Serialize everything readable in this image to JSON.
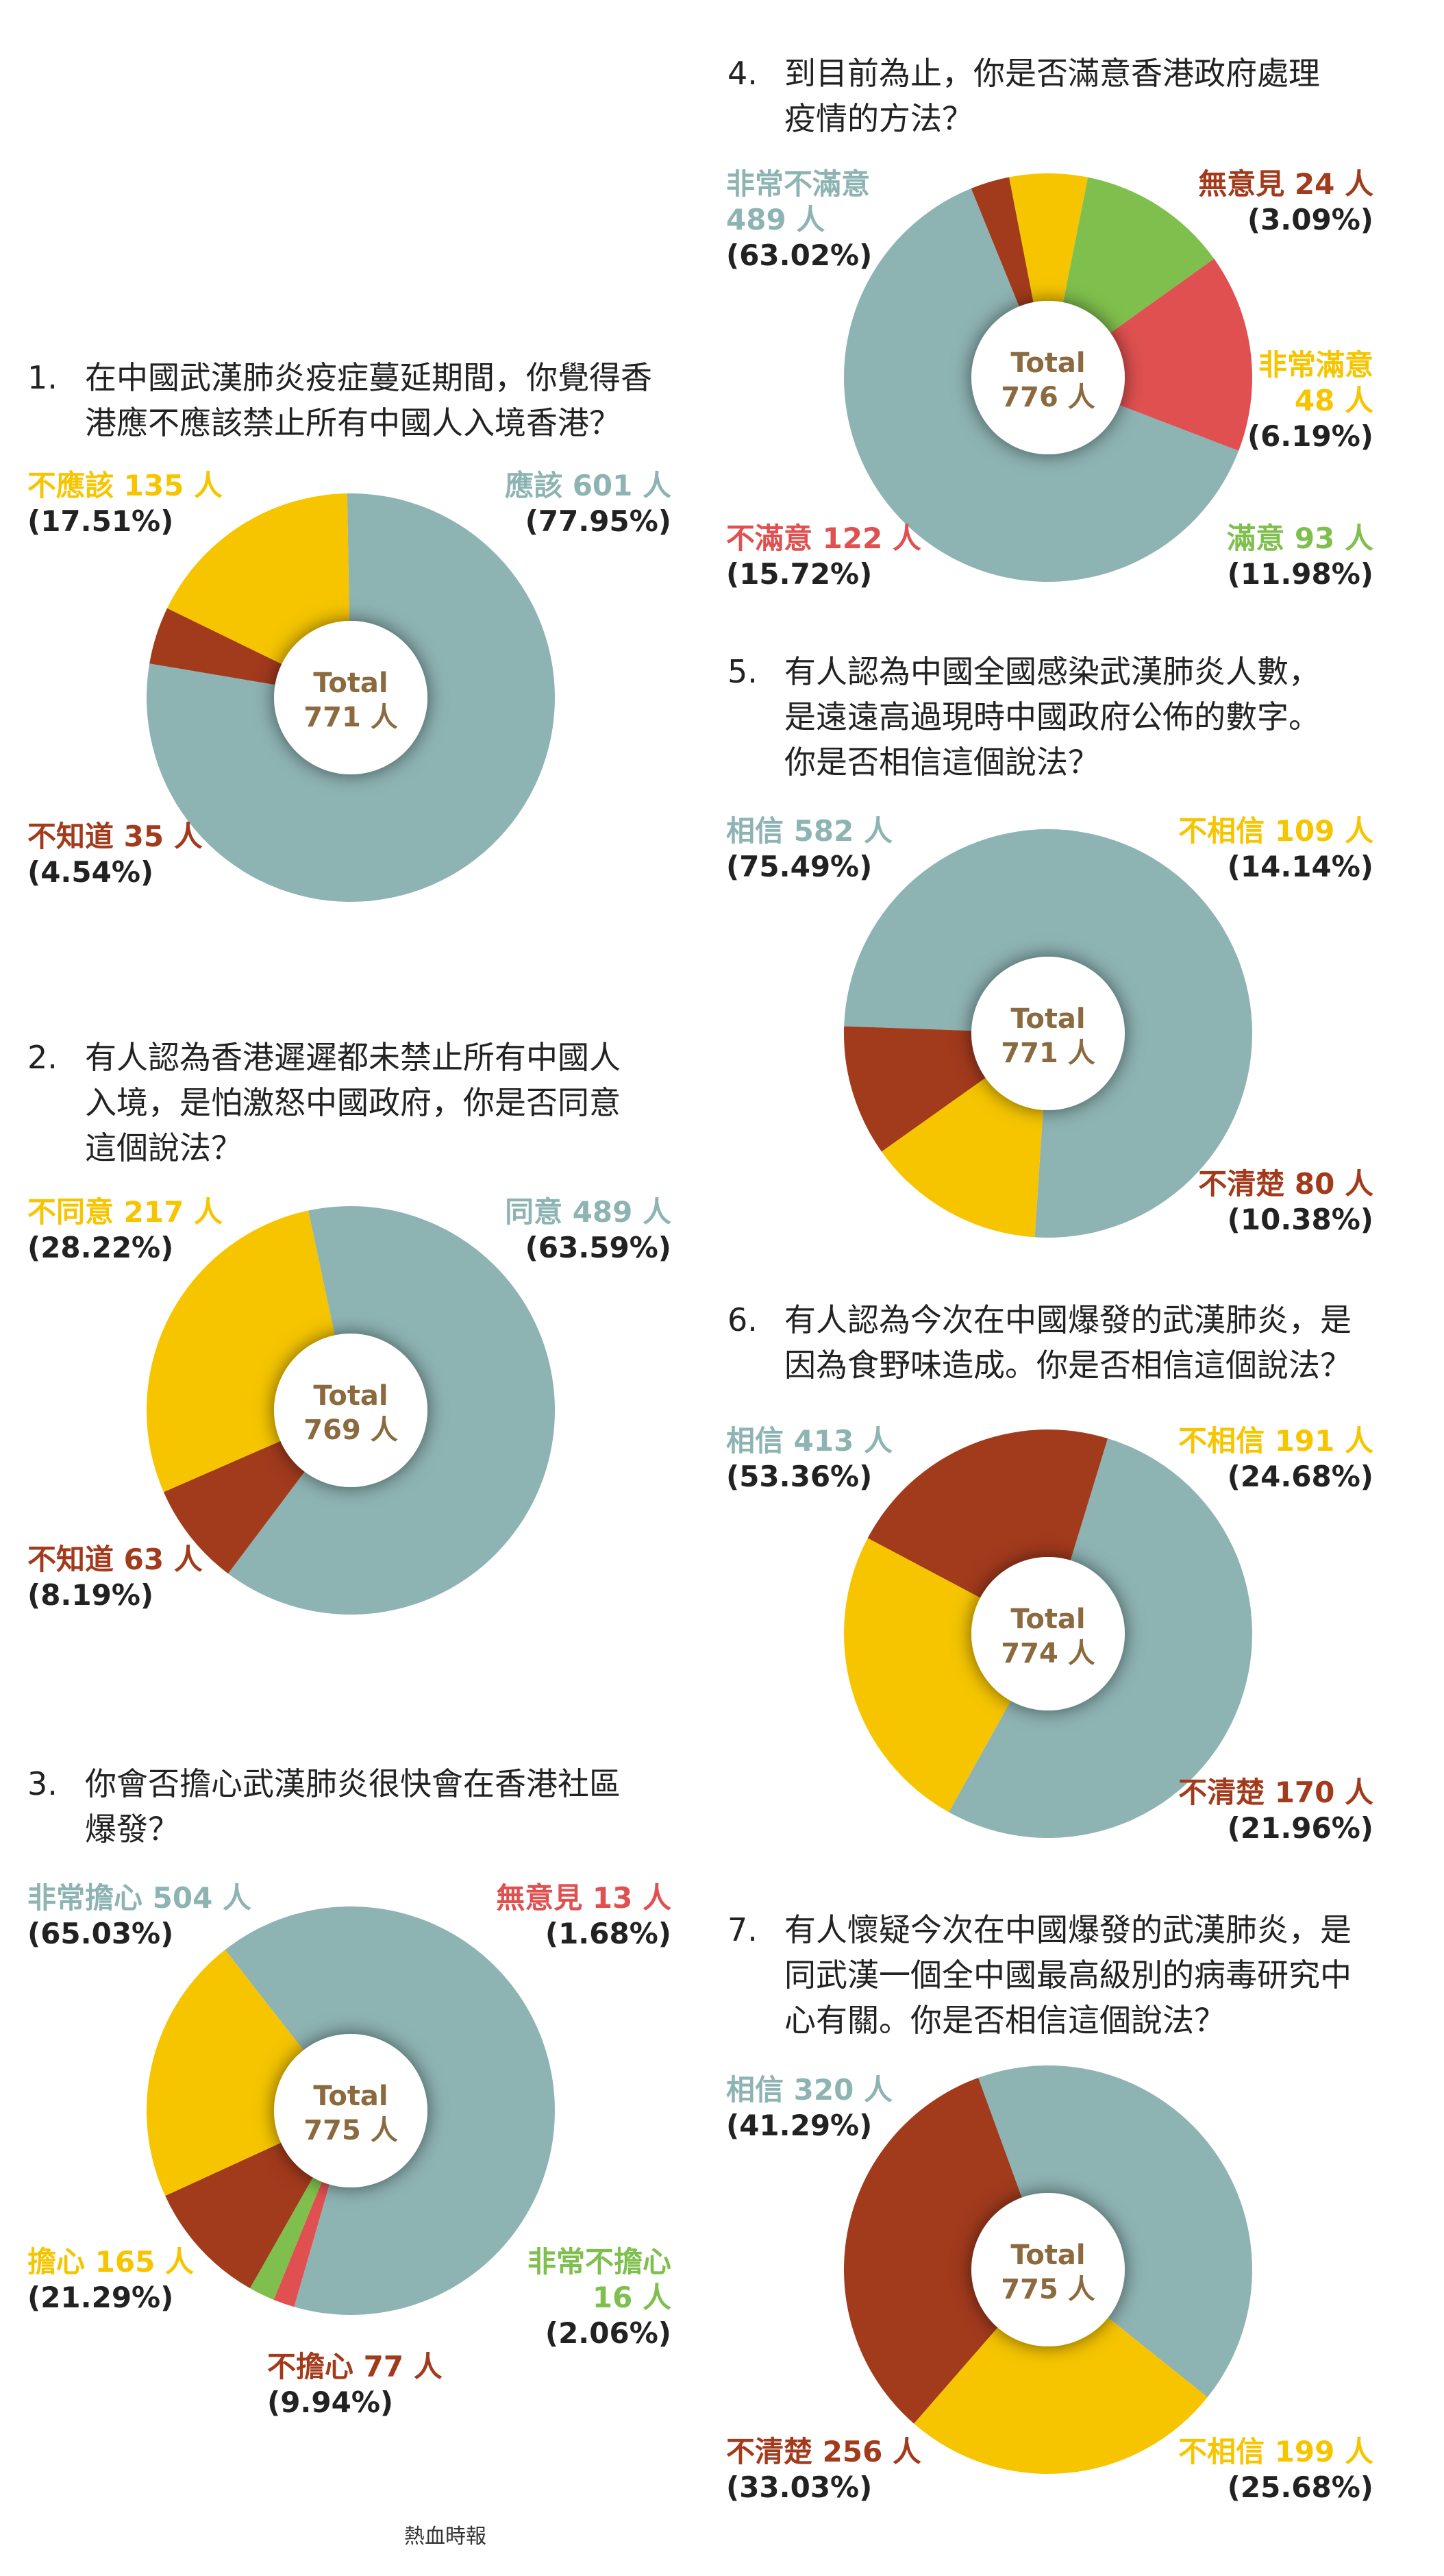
{
  "footer": "熱血時報",
  "colors": {
    "teal": "#8eb3b3",
    "yellow": "#f6c500",
    "rust": "#a23a1c",
    "red": "#e05050",
    "green": "#7fbf4d",
    "center_text": "#8a6a3e"
  },
  "chart_data": [
    {
      "type": "pie",
      "id": "q1",
      "number": "1.",
      "question": "在中國武漢肺炎疫症蔓延期間，你覺得香\n港應不應該禁止所有中國人入境香港？",
      "total_label": "Total",
      "total_value": "771 人",
      "slices": [
        {
          "label": "應該 601 人",
          "value": 77.95,
          "pct": "(77.95%)",
          "color": "#8eb3b3"
        },
        {
          "label": "不知道 35 人",
          "value": 4.54,
          "pct": "(4.54%)",
          "color": "#a23a1c"
        },
        {
          "label": "不應該 135 人",
          "value": 17.51,
          "pct": "(17.51%)",
          "color": "#f6c500"
        }
      ]
    },
    {
      "type": "pie",
      "id": "q2",
      "number": "2.",
      "question": "有人認為香港遲遲都未禁止所有中國人\n入境，是怕激怒中國政府，你是否同意\n這個說法？",
      "total_label": "Total",
      "total_value": "769 人",
      "slices": [
        {
          "label": "同意 489 人",
          "value": 63.59,
          "pct": "(63.59%)",
          "color": "#8eb3b3"
        },
        {
          "label": "不知道 63 人",
          "value": 8.19,
          "pct": "(8.19%)",
          "color": "#a23a1c"
        },
        {
          "label": "不同意 217 人",
          "value": 28.22,
          "pct": "(28.22%)",
          "color": "#f6c500"
        }
      ]
    },
    {
      "type": "pie",
      "id": "q3",
      "number": "3.",
      "question": "你會否擔心武漢肺炎很快會在香港社區\n爆發？",
      "total_label": "Total",
      "total_value": "775 人",
      "slices": [
        {
          "label": "非常擔心 504 人",
          "value": 65.03,
          "pct": "(65.03%)",
          "color": "#8eb3b3"
        },
        {
          "label": "無意見 13 人",
          "value": 1.68,
          "pct": "(1.68%)",
          "color": "#e05050"
        },
        {
          "label": "非常不擔心\n16 人",
          "value": 2.06,
          "pct": "(2.06%)",
          "color": "#7fbf4d"
        },
        {
          "label": "不擔心 77 人",
          "value": 9.94,
          "pct": "(9.94%)",
          "color": "#a23a1c"
        },
        {
          "label": "擔心 165 人",
          "value": 21.29,
          "pct": "(21.29%)",
          "color": "#f6c500"
        }
      ]
    },
    {
      "type": "pie",
      "id": "q4",
      "number": "4.",
      "question": "到目前為止，你是否滿意香港政府處理\n疫情的方法？",
      "total_label": "Total",
      "total_value": "776 人",
      "slices": [
        {
          "label": "非常不滿意\n489 人",
          "value": 63.02,
          "pct": "(63.02%)",
          "color": "#8eb3b3"
        },
        {
          "label": "無意見 24 人",
          "value": 3.09,
          "pct": "(3.09%)",
          "color": "#a23a1c"
        },
        {
          "label": "非常滿意\n48 人",
          "value": 6.19,
          "pct": "(6.19%)",
          "color": "#f6c500"
        },
        {
          "label": "滿意 93 人",
          "value": 11.98,
          "pct": "(11.98%)",
          "color": "#7fbf4d"
        },
        {
          "label": "不滿意 122 人",
          "value": 15.72,
          "pct": "(15.72%)",
          "color": "#e05050"
        }
      ]
    },
    {
      "type": "pie",
      "id": "q5",
      "number": "5.",
      "question": "有人認為中國全國感染武漢肺炎人數，\n是遠遠高過現時中國政府公佈的數字。\n你是否相信這個說法？",
      "total_label": "Total",
      "total_value": "771 人",
      "slices": [
        {
          "label": "相信 582 人",
          "value": 75.49,
          "pct": "(75.49%)",
          "color": "#8eb3b3"
        },
        {
          "label": "不相信 109 人",
          "value": 14.14,
          "pct": "(14.14%)",
          "color": "#f6c500"
        },
        {
          "label": "不清楚 80 人",
          "value": 10.38,
          "pct": "(10.38%)",
          "color": "#a23a1c"
        }
      ]
    },
    {
      "type": "pie",
      "id": "q6",
      "number": "6.",
      "question": "有人認為今次在中國爆發的武漢肺炎，是\n因為食野味造成。你是否相信這個說法？",
      "total_label": "Total",
      "total_value": "774 人",
      "slices": [
        {
          "label": "相信 413 人",
          "value": 53.36,
          "pct": "(53.36%)",
          "color": "#8eb3b3"
        },
        {
          "label": "不相信 191 人",
          "value": 24.68,
          "pct": "(24.68%)",
          "color": "#f6c500"
        },
        {
          "label": "不清楚 170 人",
          "value": 21.96,
          "pct": "(21.96%)",
          "color": "#a23a1c"
        }
      ]
    },
    {
      "type": "pie",
      "id": "q7",
      "number": "7.",
      "question": "有人懷疑今次在中國爆發的武漢肺炎，是\n同武漢一個全中國最高級別的病毒研究中\n心有關。你是否相信這個說法？",
      "total_label": "Total",
      "total_value": "775 人",
      "slices": [
        {
          "label": "相信 320 人",
          "value": 41.29,
          "pct": "(41.29%)",
          "color": "#8eb3b3"
        },
        {
          "label": "不相信 199 人",
          "value": 25.68,
          "pct": "(25.68%)",
          "color": "#f6c500"
        },
        {
          "label": "不清楚 256 人",
          "value": 33.03,
          "pct": "(33.03%)",
          "color": "#a23a1c"
        }
      ]
    }
  ]
}
